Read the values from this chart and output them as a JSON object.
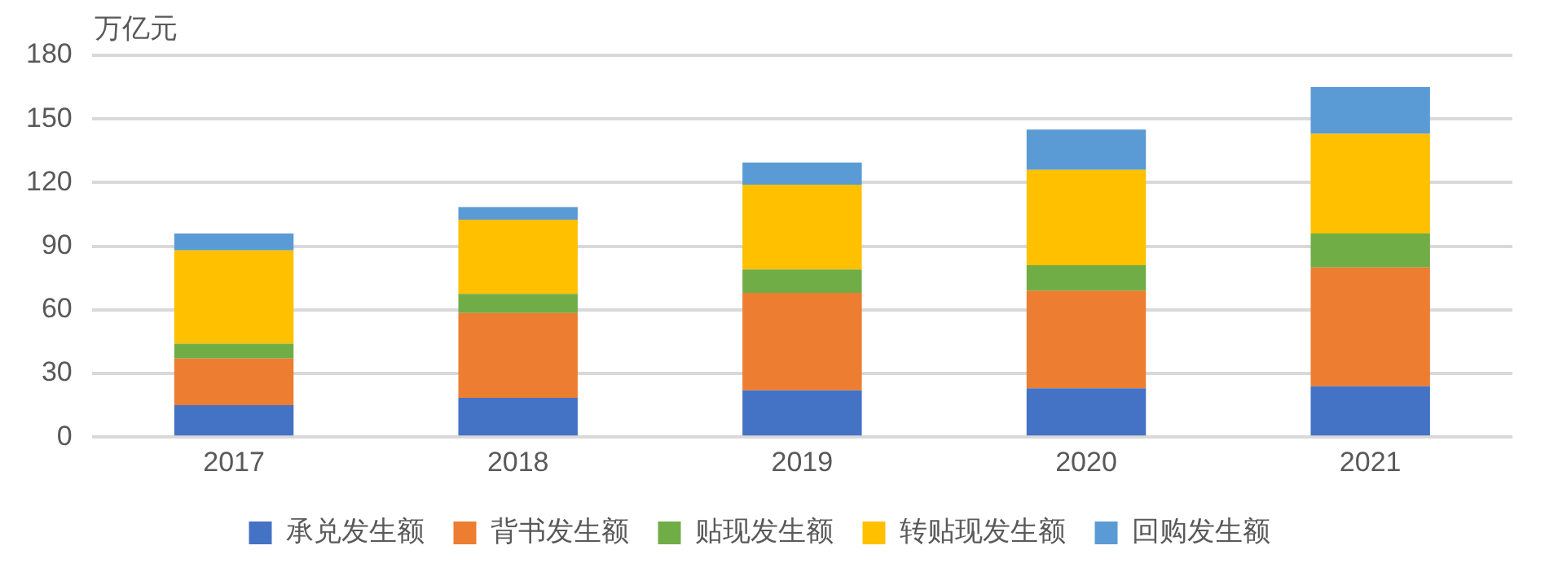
{
  "chart_data": {
    "type": "bar",
    "ylabel": "万亿元",
    "categories": [
      "2017",
      "2018",
      "2019",
      "2020",
      "2021"
    ],
    "stacked": true,
    "ylim": [
      0,
      180
    ],
    "yticks": [
      0,
      30,
      60,
      90,
      120,
      150,
      180
    ],
    "grid": "y",
    "legend": "bottom",
    "series": [
      {
        "name": "承兑发生额",
        "color": "#4472c4",
        "values": [
          15,
          18.5,
          22,
          23,
          24
        ]
      },
      {
        "name": "背书发生额",
        "color": "#ed7d31",
        "values": [
          22,
          40,
          46,
          46,
          56
        ]
      },
      {
        "name": "贴现发生额",
        "color": "#70ad47",
        "values": [
          7,
          9,
          11,
          12,
          16
        ]
      },
      {
        "name": "转贴现发生额",
        "color": "#ffc000",
        "values": [
          44,
          35,
          40,
          45,
          47
        ]
      },
      {
        "name": "回购发生额",
        "color": "#5b9bd5",
        "values": [
          8,
          6,
          10.5,
          19,
          22
        ]
      }
    ]
  }
}
